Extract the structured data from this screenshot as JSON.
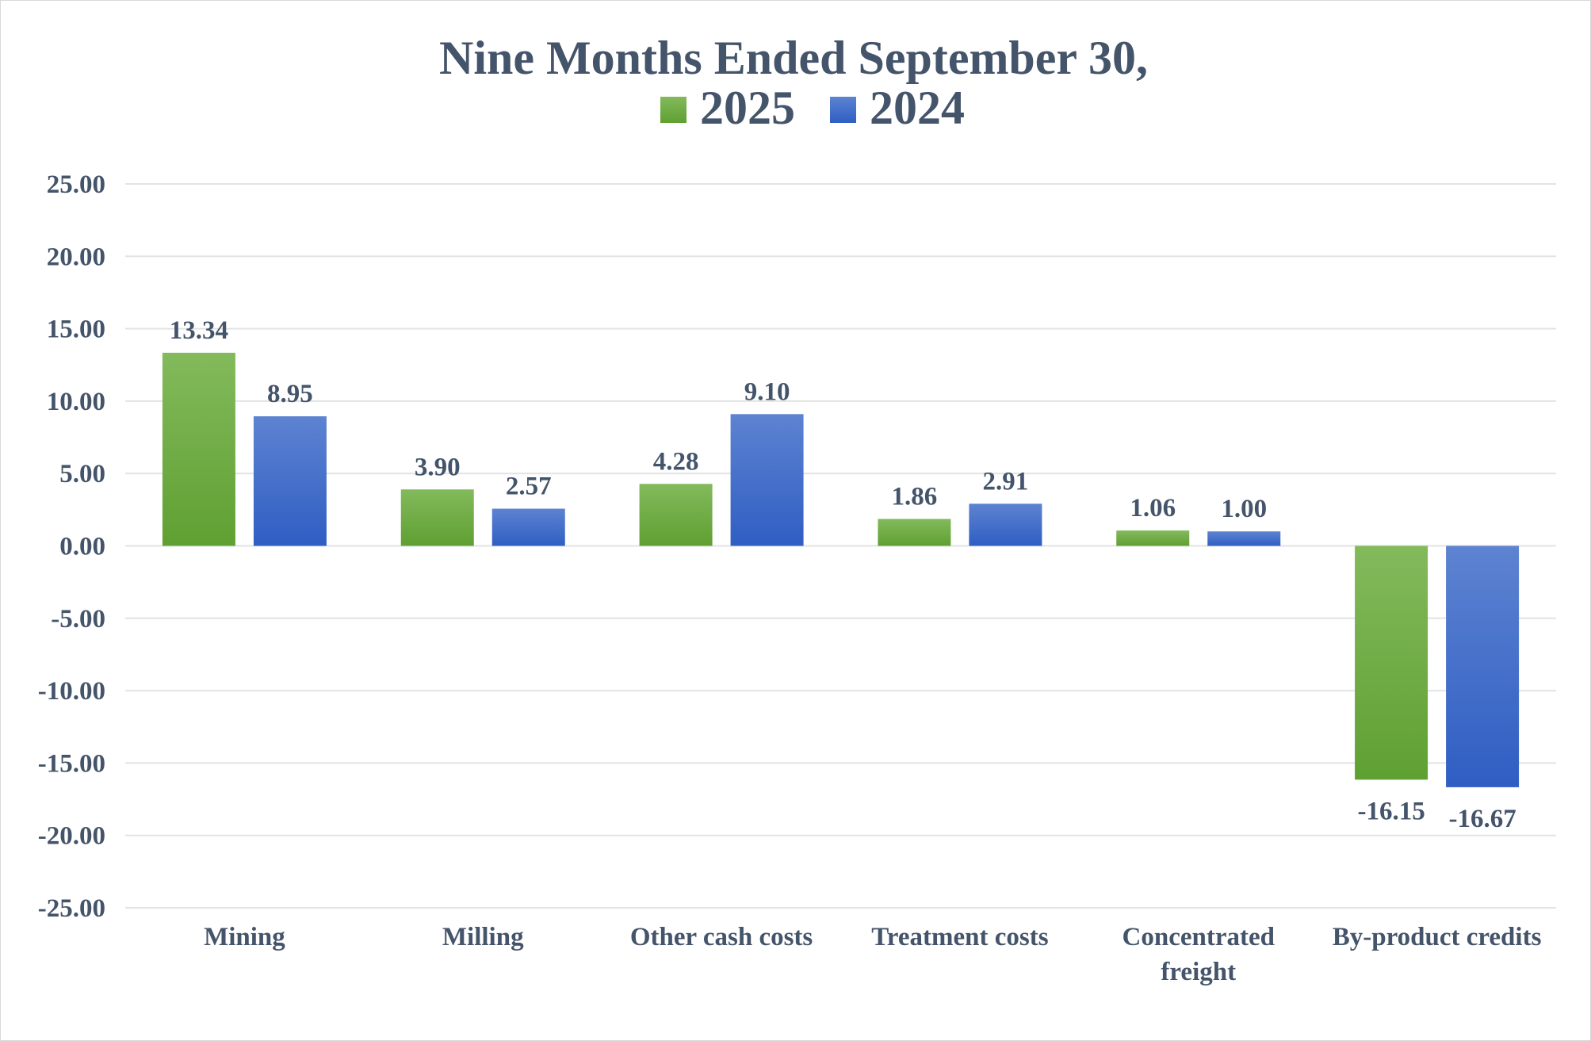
{
  "chart_data": {
    "type": "bar",
    "title": "Nine Months Ended September 30,",
    "categories": [
      [
        "Mining"
      ],
      [
        "Milling"
      ],
      [
        "Other cash costs"
      ],
      [
        "Treatment costs"
      ],
      [
        "Concentrated",
        "freight"
      ],
      [
        "By-product credits"
      ]
    ],
    "series": [
      {
        "name": "2025",
        "values": [
          13.34,
          3.9,
          4.28,
          1.86,
          1.06,
          -16.15
        ],
        "labels": [
          "13.34",
          "3.90",
          "4.28",
          "1.86",
          "1.06",
          "-16.15"
        ]
      },
      {
        "name": "2024",
        "values": [
          8.95,
          2.57,
          9.1,
          2.91,
          1.0,
          -16.67
        ],
        "labels": [
          "8.95",
          "2.57",
          "9.10",
          "2.91",
          "1.00",
          "-16.67"
        ]
      }
    ],
    "ylim": [
      -25,
      25
    ],
    "yticks": [
      25,
      20,
      15,
      10,
      5,
      0,
      -5,
      -10,
      -15,
      -20,
      -25
    ],
    "ytick_labels": [
      "25.00",
      "20.00",
      "15.00",
      "10.00",
      "5.00",
      "0.00",
      "-5.00",
      "-10.00",
      "-15.00",
      "-20.00",
      "-25.00"
    ],
    "xlabel": "",
    "ylabel": "",
    "grid": true,
    "legend_position": "top",
    "colors": {
      "series_2025_top": "#83ba5c",
      "series_2025_bottom": "#5fa032",
      "series_2024_top": "#5d83d1",
      "series_2024_bottom": "#2f5ec3",
      "gridline": "#e3e3e3",
      "text": "#44546a"
    }
  }
}
